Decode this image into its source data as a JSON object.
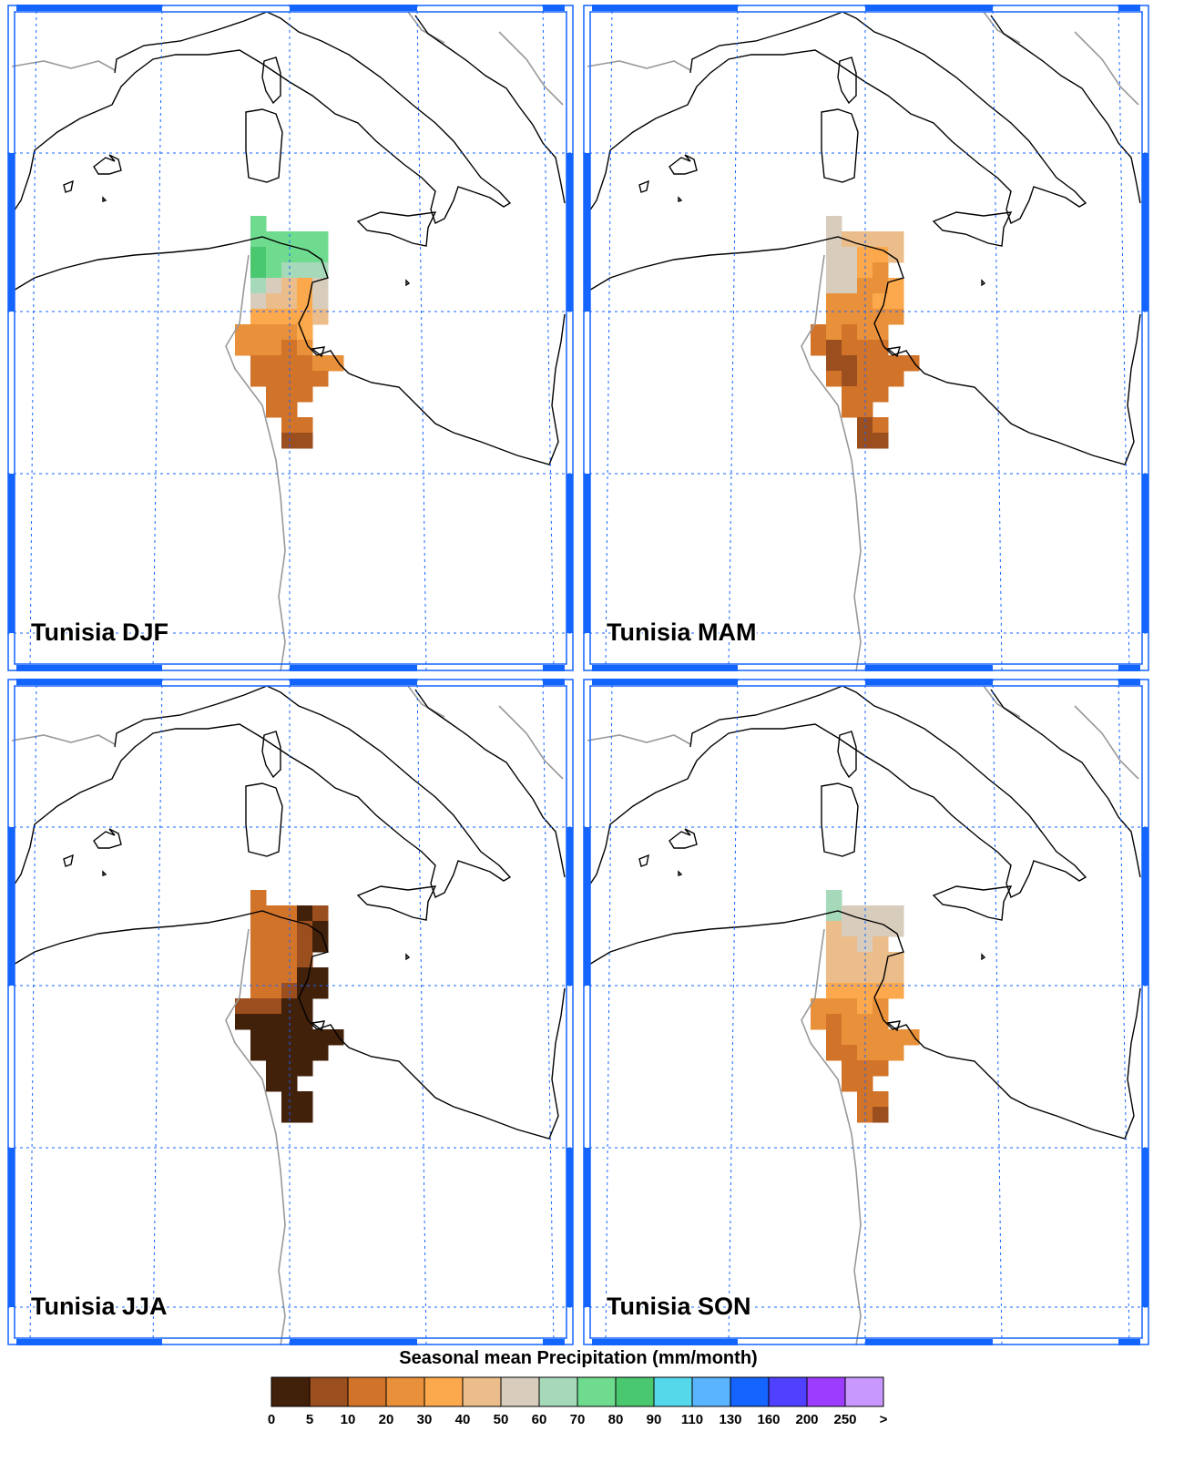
{
  "panels": [
    {
      "title": "Tunisia DJF",
      "cells": [
        [
          null,
          75,
          null,
          null,
          null,
          null,
          null
        ],
        [
          null,
          75,
          75,
          75,
          75,
          75,
          null
        ],
        [
          null,
          85,
          75,
          75,
          75,
          75,
          null
        ],
        [
          null,
          85,
          75,
          65,
          65,
          65,
          null
        ],
        [
          null,
          65,
          55,
          45,
          35,
          55,
          null
        ],
        [
          null,
          55,
          45,
          45,
          35,
          55,
          null
        ],
        [
          null,
          35,
          35,
          35,
          35,
          45,
          null
        ],
        [
          25,
          25,
          25,
          25,
          35,
          null,
          null
        ],
        [
          25,
          25,
          25,
          15,
          25,
          null,
          null
        ],
        [
          null,
          15,
          15,
          15,
          15,
          25,
          25
        ],
        [
          null,
          15,
          15,
          15,
          15,
          15,
          null
        ],
        [
          null,
          null,
          15,
          15,
          15,
          null,
          null
        ],
        [
          null,
          null,
          15,
          15,
          null,
          null,
          null
        ],
        [
          null,
          null,
          null,
          15,
          15,
          null,
          null
        ],
        [
          null,
          null,
          null,
          7,
          7,
          null,
          null
        ]
      ]
    },
    {
      "title": "Tunisia MAM",
      "cells": [
        [
          null,
          55,
          null,
          null,
          null,
          null,
          null
        ],
        [
          null,
          55,
          45,
          45,
          45,
          45,
          null
        ],
        [
          null,
          55,
          55,
          35,
          35,
          45,
          null
        ],
        [
          null,
          55,
          55,
          35,
          25,
          null,
          null
        ],
        [
          null,
          55,
          55,
          25,
          25,
          35,
          null
        ],
        [
          null,
          25,
          25,
          25,
          35,
          35,
          null
        ],
        [
          null,
          25,
          25,
          25,
          25,
          25,
          null
        ],
        [
          15,
          25,
          15,
          25,
          25,
          null,
          null
        ],
        [
          15,
          7,
          15,
          15,
          15,
          null,
          null
        ],
        [
          null,
          7,
          7,
          15,
          15,
          15,
          15
        ],
        [
          null,
          15,
          7,
          15,
          15,
          15,
          null
        ],
        [
          null,
          null,
          15,
          15,
          15,
          null,
          null
        ],
        [
          null,
          null,
          15,
          15,
          null,
          null,
          null
        ],
        [
          null,
          null,
          null,
          7,
          15,
          null,
          null
        ],
        [
          null,
          null,
          null,
          7,
          7,
          null,
          null
        ]
      ]
    },
    {
      "title": "Tunisia JJA",
      "cells": [
        [
          null,
          15,
          null,
          null,
          null,
          null,
          null
        ],
        [
          null,
          15,
          15,
          15,
          2,
          7,
          null
        ],
        [
          null,
          15,
          15,
          15,
          7,
          2,
          null
        ],
        [
          null,
          15,
          15,
          15,
          7,
          2,
          null
        ],
        [
          null,
          15,
          15,
          15,
          7,
          null,
          null
        ],
        [
          null,
          15,
          15,
          15,
          2,
          2,
          null
        ],
        [
          null,
          15,
          15,
          7,
          2,
          2,
          null
        ],
        [
          7,
          7,
          7,
          2,
          2,
          null,
          null
        ],
        [
          2,
          2,
          2,
          2,
          2,
          null,
          null
        ],
        [
          null,
          2,
          2,
          2,
          2,
          2,
          2
        ],
        [
          null,
          2,
          2,
          2,
          2,
          2,
          null
        ],
        [
          null,
          null,
          2,
          2,
          2,
          null,
          null
        ],
        [
          null,
          null,
          2,
          2,
          null,
          null,
          null
        ],
        [
          null,
          null,
          null,
          2,
          2,
          null,
          null
        ],
        [
          null,
          null,
          null,
          2,
          2,
          null,
          null
        ]
      ]
    },
    {
      "title": "Tunisia SON",
      "cells": [
        [
          null,
          65,
          null,
          null,
          null,
          null,
          null
        ],
        [
          null,
          65,
          55,
          55,
          55,
          55,
          null
        ],
        [
          null,
          45,
          55,
          55,
          55,
          55,
          null
        ],
        [
          null,
          45,
          45,
          55,
          45,
          null,
          null
        ],
        [
          null,
          45,
          45,
          45,
          45,
          45,
          null
        ],
        [
          null,
          45,
          45,
          45,
          45,
          45,
          null
        ],
        [
          null,
          35,
          35,
          35,
          35,
          35,
          null
        ],
        [
          25,
          25,
          25,
          35,
          25,
          null,
          null
        ],
        [
          25,
          15,
          25,
          25,
          25,
          null,
          null
        ],
        [
          null,
          15,
          25,
          25,
          25,
          25,
          25
        ],
        [
          null,
          15,
          15,
          25,
          25,
          25,
          null
        ],
        [
          null,
          null,
          15,
          15,
          15,
          null,
          null
        ],
        [
          null,
          null,
          15,
          15,
          null,
          null,
          null
        ],
        [
          null,
          null,
          null,
          15,
          15,
          null,
          null
        ],
        [
          null,
          null,
          null,
          15,
          7,
          null,
          null
        ]
      ]
    }
  ],
  "colorbar": {
    "title": "Seasonal mean Precipitation (mm/month)",
    "levels": [
      0,
      5,
      10,
      20,
      30,
      40,
      50,
      60,
      70,
      80,
      90,
      110,
      130,
      160,
      200,
      250
    ],
    "over_label": ">",
    "colors": [
      "#42210b",
      "#9b4e1e",
      "#d2732a",
      "#e8913a",
      "#fca84d",
      "#ebbd8a",
      "#d8cdbd",
      "#a6d9b9",
      "#6fdb8f",
      "#4ac86f",
      "#55d9ea",
      "#5ab4ff",
      "#1464ff",
      "#5040ff",
      "#9b3cff",
      "#c898ff"
    ]
  }
}
